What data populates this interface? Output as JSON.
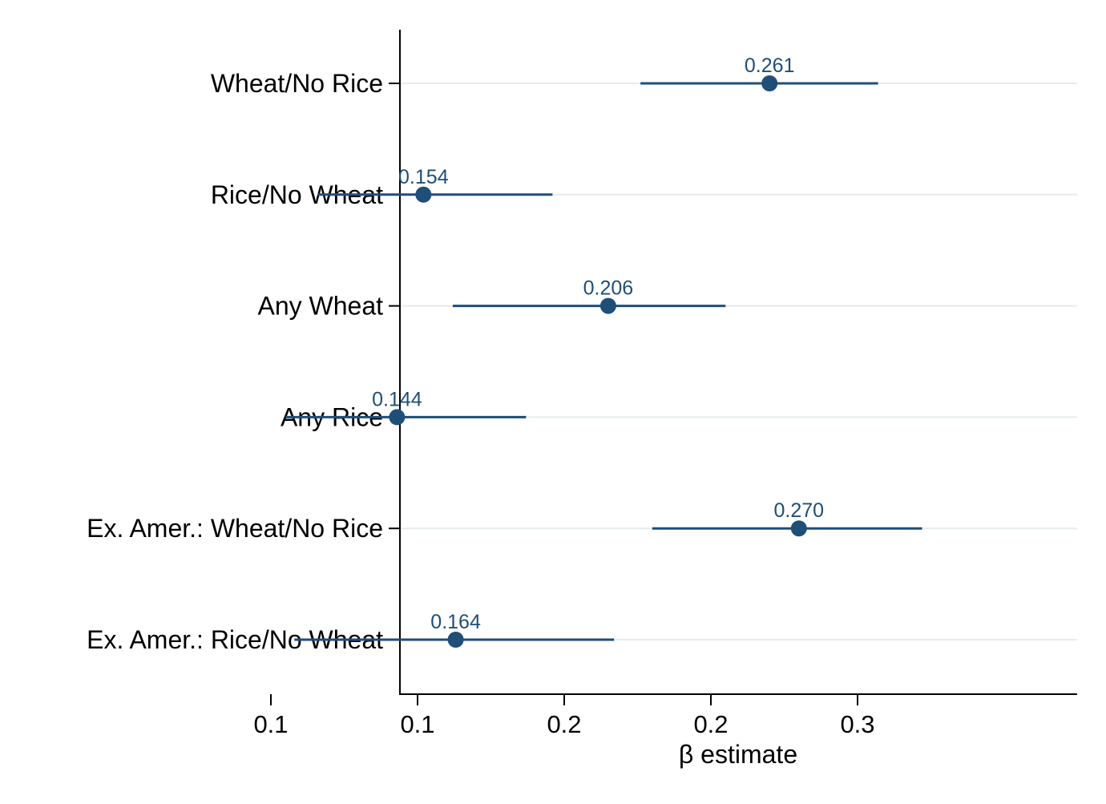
{
  "chart_data": {
    "type": "scatter",
    "xlabel": "β estimate",
    "x_tick_labels": [
      "0.1",
      "0.1",
      "0.2",
      "0.2",
      "0.3"
    ],
    "x_tick_values": [
      0.05,
      0.1,
      0.15,
      0.2,
      0.25
    ],
    "xlim": [
      0.0,
      0.3
    ],
    "grid": true,
    "colors": {
      "marker": "#1f4e79",
      "grid": "#e6ecee",
      "axis": "#000000"
    },
    "categories": [
      "Wheat/No Rice",
      "Rice/No Wheat",
      "Any Wheat",
      "Any Rice",
      "Ex. Amer.: Wheat/No Rice",
      "Ex. Amer.: Rice/No Wheat"
    ],
    "points": [
      {
        "category": "Wheat/No Rice",
        "estimate": 0.22,
        "ci_low": 0.176,
        "ci_high": 0.257,
        "label": "0.261"
      },
      {
        "category": "Rice/No Wheat",
        "estimate": 0.102,
        "ci_low": 0.066,
        "ci_high": 0.146,
        "label": "0.154"
      },
      {
        "category": "Any Wheat",
        "estimate": 0.165,
        "ci_low": 0.112,
        "ci_high": 0.205,
        "label": "0.206"
      },
      {
        "category": "Any Rice",
        "estimate": 0.093,
        "ci_low": 0.055,
        "ci_high": 0.137,
        "label": "0.144"
      },
      {
        "category": "Ex. Amer.: Wheat/No Rice",
        "estimate": 0.23,
        "ci_low": 0.18,
        "ci_high": 0.272,
        "label": "0.270"
      },
      {
        "category": "Ex. Amer.: Rice/No Wheat",
        "estimate": 0.113,
        "ci_low": 0.058,
        "ci_high": 0.167,
        "label": "0.164"
      }
    ]
  }
}
